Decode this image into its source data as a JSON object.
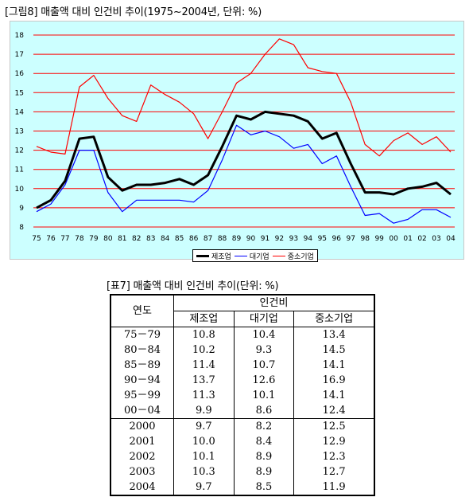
{
  "figure_caption": "[그림8] 매출액 대비 인건비 추이(1975~2004년, 단위: %)",
  "table_caption": "[표7] 매출액 대비 인건비 추이(단위: %)",
  "colors": {
    "panel_background": "#ccffff",
    "frame_background": "#c8c8c8",
    "gridline": "#ff0000",
    "manufacturing": "#000000",
    "large": "#0000ff",
    "sme": "#ff0000"
  },
  "chart_data": {
    "type": "line",
    "title": "",
    "xlabel": "",
    "ylabel": "",
    "ylim": [
      8,
      18
    ],
    "yticks": [
      "8",
      "9",
      "10",
      "11",
      "12",
      "13",
      "14",
      "15",
      "16",
      "17",
      "18"
    ],
    "grid": true,
    "legend_position": "bottom-center",
    "categories": [
      "75",
      "76",
      "77",
      "78",
      "79",
      "80",
      "81",
      "82",
      "83",
      "84",
      "85",
      "86",
      "87",
      "88",
      "89",
      "90",
      "91",
      "92",
      "93",
      "94",
      "95",
      "96",
      "97",
      "98",
      "99",
      "00",
      "01",
      "02",
      "03",
      "04"
    ],
    "series": [
      {
        "name": "제조업",
        "color": "#000000",
        "values": [
          9.0,
          9.4,
          10.4,
          12.6,
          12.7,
          10.6,
          9.9,
          10.2,
          10.2,
          10.3,
          10.5,
          10.2,
          10.7,
          12.2,
          13.8,
          13.6,
          14.0,
          13.9,
          13.8,
          13.5,
          12.6,
          12.9,
          11.3,
          9.8,
          9.8,
          9.7,
          10.0,
          10.1,
          10.3,
          9.7
        ]
      },
      {
        "name": "대기업",
        "color": "#0000ff",
        "values": [
          8.8,
          9.2,
          10.2,
          12.0,
          12.0,
          9.8,
          8.8,
          9.4,
          9.4,
          9.4,
          9.4,
          9.3,
          9.9,
          11.5,
          13.3,
          12.8,
          13.0,
          12.7,
          12.1,
          12.3,
          11.3,
          11.7,
          10.1,
          8.6,
          8.7,
          8.2,
          8.4,
          8.9,
          8.9,
          8.5
        ]
      },
      {
        "name": "중소기업",
        "color": "#ff0000",
        "values": [
          12.2,
          11.9,
          11.8,
          15.3,
          15.9,
          14.7,
          13.8,
          13.5,
          15.4,
          14.9,
          14.5,
          13.9,
          12.6,
          14.0,
          15.5,
          16.0,
          17.0,
          17.8,
          17.5,
          16.3,
          16.1,
          16.0,
          14.5,
          12.3,
          11.7,
          12.5,
          12.9,
          12.3,
          12.7,
          11.9
        ]
      }
    ]
  },
  "table": {
    "header_year": "연도",
    "header_group": "인건비",
    "header_cols": [
      "제조업",
      "대기업",
      "중소기업"
    ],
    "rows_period": [
      [
        "75－79",
        "10.8",
        "10.4",
        "13.4"
      ],
      [
        "80－84",
        "10.2",
        "9.3",
        "14.5"
      ],
      [
        "85－89",
        "11.4",
        "10.7",
        "14.1"
      ],
      [
        "90－94",
        "13.7",
        "12.6",
        "16.9"
      ],
      [
        "95－99",
        "11.3",
        "10.1",
        "14.1"
      ],
      [
        "00－04",
        "9.9",
        "8.6",
        "12.4"
      ]
    ],
    "rows_year": [
      [
        "2000",
        "9.7",
        "8.2",
        "12.5"
      ],
      [
        "2001",
        "10.0",
        "8.4",
        "12.9"
      ],
      [
        "2002",
        "10.1",
        "8.9",
        "12.3"
      ],
      [
        "2003",
        "10.3",
        "8.9",
        "12.7"
      ],
      [
        "2004",
        "9.7",
        "8.5",
        "11.9"
      ]
    ]
  }
}
